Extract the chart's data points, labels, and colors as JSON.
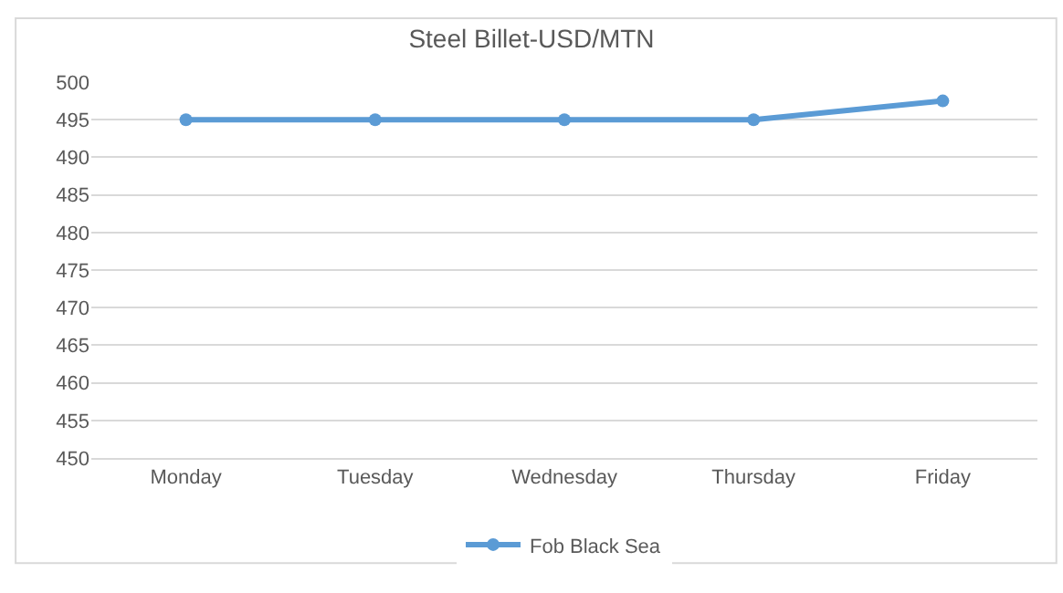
{
  "chart_data": {
    "type": "line",
    "title": "Steel Billet-USD/MTN",
    "categories": [
      "Monday",
      "Tuesday",
      "Wednesday",
      "Thursday",
      "Friday"
    ],
    "series": [
      {
        "name": "Fob Black Sea",
        "color": "#5b9bd5",
        "values": [
          495,
          495,
          495,
          495,
          497.5
        ]
      }
    ],
    "ylim": [
      450,
      500
    ],
    "yticks": [
      450,
      455,
      460,
      465,
      470,
      475,
      480,
      485,
      490,
      495,
      500
    ],
    "grid": "y",
    "legend": "bottom",
    "marker": "circle",
    "line_style": "solid"
  }
}
